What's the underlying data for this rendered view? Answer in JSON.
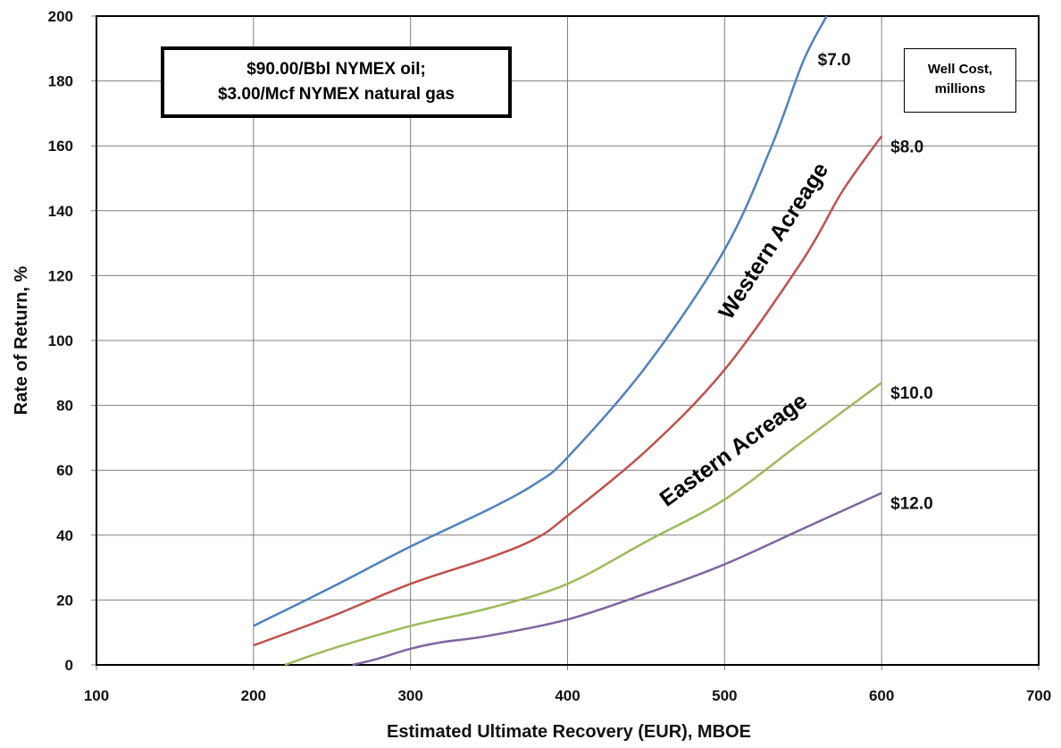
{
  "chart_data": {
    "type": "line",
    "xlabel": "Estimated Ultimate Recovery (EUR), MBOE",
    "ylabel": "Rate of Return, %",
    "xlim": [
      100,
      700
    ],
    "ylim": [
      0,
      200
    ],
    "x_ticks": [
      "100",
      "200",
      "300",
      "400",
      "500",
      "600",
      "700"
    ],
    "y_ticks": [
      "0",
      "20",
      "40",
      "60",
      "80",
      "100",
      "120",
      "140",
      "160",
      "180",
      "200"
    ],
    "grid": true,
    "legend_title": "Well Cost, millions",
    "series": [
      {
        "name": "$7.0",
        "color": "#4f81bd",
        "points": [
          [
            200,
            12
          ],
          [
            250,
            24
          ],
          [
            300,
            36.5
          ],
          [
            350,
            48
          ],
          [
            380,
            56
          ],
          [
            400,
            64
          ],
          [
            450,
            92
          ],
          [
            500,
            128
          ],
          [
            530,
            160
          ],
          [
            550,
            186
          ],
          [
            565,
            200
          ]
        ]
      },
      {
        "name": "$8.0",
        "color": "#c0504d",
        "points": [
          [
            200,
            6
          ],
          [
            250,
            15
          ],
          [
            300,
            25
          ],
          [
            350,
            33
          ],
          [
            380,
            39
          ],
          [
            400,
            46
          ],
          [
            450,
            66
          ],
          [
            500,
            91
          ],
          [
            550,
            125
          ],
          [
            575,
            146
          ],
          [
            600,
            163
          ]
        ]
      },
      {
        "name": "$10.0",
        "color": "#9bbb59",
        "points": [
          [
            220,
            0
          ],
          [
            250,
            5
          ],
          [
            300,
            12
          ],
          [
            350,
            17.5
          ],
          [
            400,
            25
          ],
          [
            450,
            38
          ],
          [
            500,
            51
          ],
          [
            550,
            69
          ],
          [
            600,
            87
          ]
        ]
      },
      {
        "name": "$12.0",
        "color": "#8064a2",
        "points": [
          [
            263,
            0
          ],
          [
            280,
            2
          ],
          [
            300,
            5
          ],
          [
            320,
            7
          ],
          [
            350,
            9
          ],
          [
            400,
            14
          ],
          [
            450,
            22
          ],
          [
            500,
            31
          ],
          [
            550,
            42
          ],
          [
            600,
            53
          ]
        ]
      }
    ],
    "annotations": {
      "prices_line1": "$90.00/Bbl NYMEX oil;",
      "prices_line2": "$3.00/Mcf NYMEX natural gas",
      "western": "Western Acreage",
      "eastern": "Eastern Acreage",
      "legend_line1": "Well Cost,",
      "legend_line2": "millions"
    }
  }
}
